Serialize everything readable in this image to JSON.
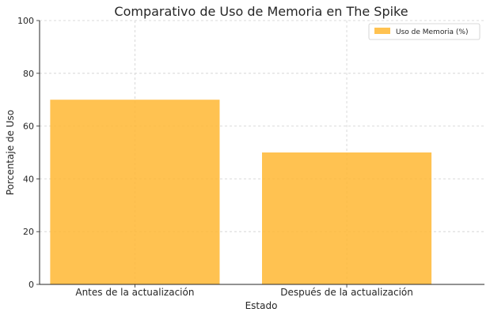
{
  "chart_data": {
    "type": "bar",
    "title": "Comparativo de Uso de Memoria en The Spike",
    "xlabel": "Estado",
    "ylabel": "Porcentaje de Uso",
    "categories": [
      "Antes de la actualización",
      "Después de la actualización"
    ],
    "series": [
      {
        "name": "Uso de Memoria (%)",
        "values": [
          70,
          50
        ]
      }
    ],
    "ylim": [
      0,
      100
    ],
    "yticks": [
      0,
      20,
      40,
      60,
      80,
      100
    ],
    "grid": true,
    "legend_position": "top-right",
    "colors": {
      "bar": "#ffb732",
      "bar_opacity": 0.85,
      "grid": "#d0d0d0",
      "axis": "#262626"
    }
  }
}
